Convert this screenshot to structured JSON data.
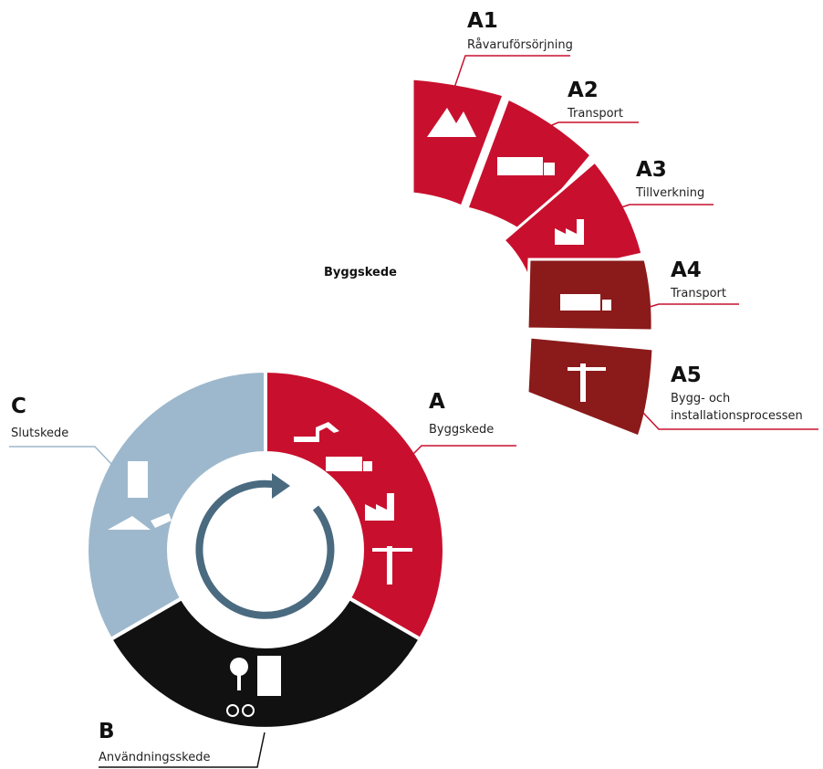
{
  "detail": {
    "title": "Byggskede",
    "modules": [
      {
        "code": "A1",
        "name": "Råvaruförsörjning"
      },
      {
        "code": "A2",
        "name": "Transport"
      },
      {
        "code": "A3",
        "name": "Tillverkning"
      },
      {
        "code": "A4",
        "name": "Transport"
      },
      {
        "code": "A5",
        "name_lines": [
          "Bygg- och",
          "installationsprocessen"
        ]
      }
    ]
  },
  "cycle": {
    "stages": [
      {
        "code": "A",
        "name": "Byggskede"
      },
      {
        "code": "B",
        "name": "Användningsskede"
      },
      {
        "code": "C",
        "name": "Slutskede"
      }
    ]
  }
}
